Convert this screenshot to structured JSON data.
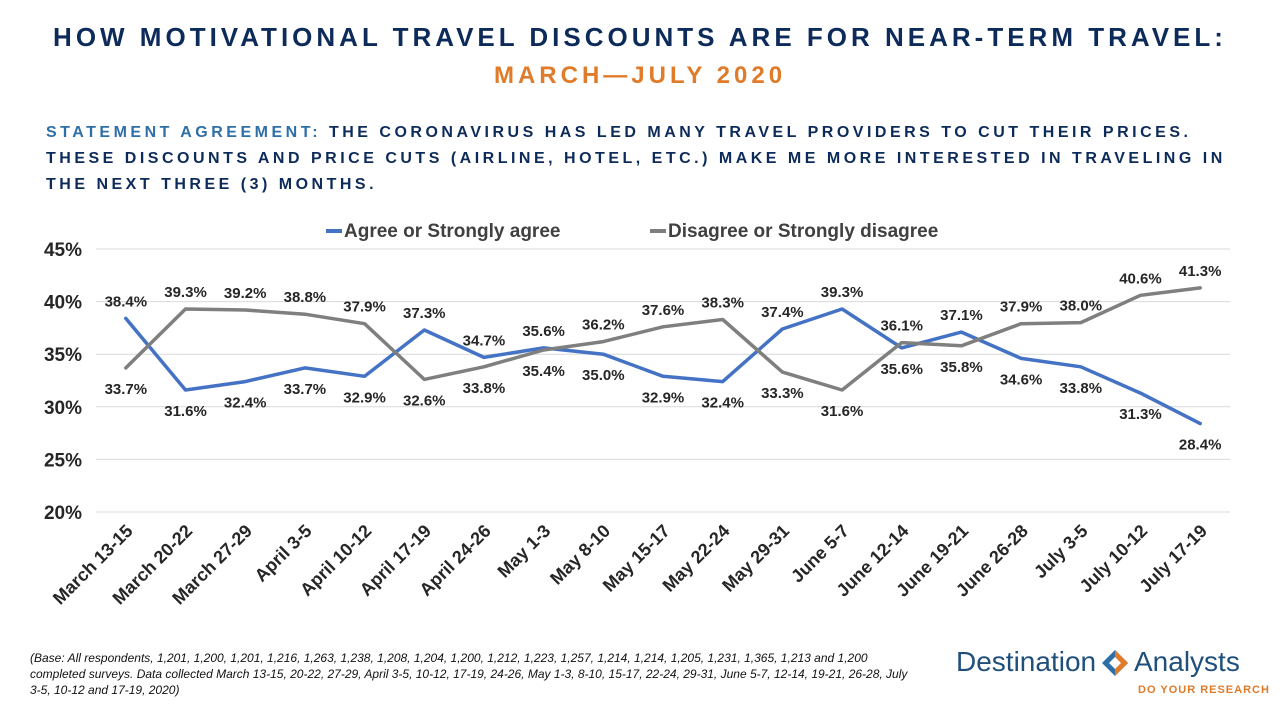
{
  "header": {
    "title": "HOW MOTIVATIONAL TRAVEL DISCOUNTS ARE FOR NEAR-TERM TRAVEL:",
    "subtitle": "MARCH—JULY 2020"
  },
  "statement": {
    "lead": "STATEMENT AGREEMENT:",
    "text": " THE CORONAVIRUS HAS LED MANY TRAVEL PROVIDERS TO CUT THEIR PRICES. THESE DISCOUNTS AND PRICE CUTS (AIRLINE, HOTEL, ETC.) MAKE ME MORE INTERESTED IN TRAVELING IN THE NEXT THREE (3) MONTHS."
  },
  "footnote": "(Base: All respondents, 1,201, 1,200, 1,201, 1,216, 1,263, 1,238, 1,208, 1,204, 1,200, 1,212, 1,223, 1,257, 1,214, 1,214, 1,205, 1,231, 1,365, 1,213 and 1,200 completed surveys. Data collected March 13-15, 20-22, 27-29, April 3-5, 10-12, 17-19, 24-26, May 1-3, 8-10, 15-17, 22-24, 29-31, June 5-7, 12-14, 19-21, 26-28, July 3-5, 10-12 and 17-19, 2020)",
  "logo": {
    "word1": "Destination",
    "word2": "Analysts",
    "tagline": "DO YOUR RESEARCH",
    "blue": "#2f6fa8",
    "orange": "#e07b2a"
  },
  "chart_data": {
    "type": "line",
    "title": "",
    "xlabel": "",
    "ylabel": "",
    "ylim": [
      20,
      45
    ],
    "yticks": [
      20,
      25,
      30,
      35,
      40,
      45
    ],
    "ytick_labels": [
      "20%",
      "25%",
      "30%",
      "35%",
      "40%",
      "45%"
    ],
    "grid": true,
    "legend_position": "top",
    "value_suffix": "%",
    "categories": [
      "March 13-15",
      "March 20-22",
      "March 27-29",
      "April 3-5",
      "April 10-12",
      "April 17-19",
      "April 24-26",
      "May 1-3",
      "May 8-10",
      "May 15-17",
      "May 22-24",
      "May 29-31",
      "June 5-7",
      "June 12-14",
      "June 19-21",
      "June 26-28",
      "July 3-5",
      "July 10-12",
      "July 17-19"
    ],
    "series": [
      {
        "name": "Agree or Strongly agree",
        "color": "#4472c4",
        "values": [
          38.4,
          31.6,
          32.4,
          33.7,
          32.9,
          37.3,
          34.7,
          35.6,
          35.0,
          32.9,
          32.4,
          37.4,
          39.3,
          35.6,
          37.1,
          34.6,
          33.8,
          31.3,
          28.4
        ]
      },
      {
        "name": "Disagree or Strongly disagree",
        "color": "#7f7f7f",
        "values": [
          33.7,
          39.3,
          39.2,
          38.8,
          37.9,
          32.6,
          33.8,
          35.4,
          36.2,
          37.6,
          38.3,
          33.3,
          31.6,
          36.1,
          35.8,
          37.9,
          38.0,
          40.6,
          41.3
        ]
      }
    ]
  }
}
